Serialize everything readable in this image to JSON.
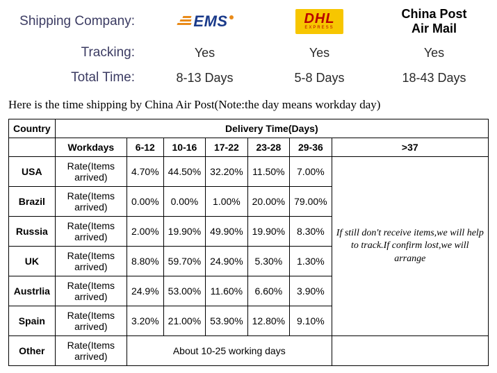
{
  "top": {
    "shipping_company_label": "Shipping Company:",
    "tracking_label": "Tracking:",
    "total_time_label": "Total Time:",
    "companies": {
      "ems": {
        "name": "EMS"
      },
      "dhl": {
        "name": "DHL",
        "sub": "EXPRESS"
      },
      "chinapost": {
        "line1": "China Post",
        "line2": "Air Mail"
      }
    },
    "tracking": {
      "ems": "Yes",
      "dhl": "Yes",
      "chinapost": "Yes"
    },
    "total_time": {
      "ems": "8-13 Days",
      "dhl": "5-8 Days",
      "chinapost": "18-43 Days"
    }
  },
  "note": "Here is the time shipping by China Air Post(Note:the day means workday day)",
  "table": {
    "country_header": "Country",
    "delivery_header": "Delivery Time(Days)",
    "workdays_label": "Workdays",
    "ranges": [
      "6-12",
      "10-16",
      "17-22",
      "23-28",
      "29-36",
      ">37"
    ],
    "row_label": "Rate(Items arrived)",
    "note_over37": "If still don't receive items,we will help to track.If confirm lost,we will arrange",
    "rows": [
      {
        "country": "USA",
        "vals": [
          "4.70%",
          "44.50%",
          "32.20%",
          "11.50%",
          "7.00%"
        ]
      },
      {
        "country": "Brazil",
        "vals": [
          "0.00%",
          "0.00%",
          "1.00%",
          "20.00%",
          "79.00%"
        ]
      },
      {
        "country": "Russia",
        "vals": [
          "2.00%",
          "19.90%",
          "49.90%",
          "19.90%",
          "8.30%"
        ]
      },
      {
        "country": "UK",
        "vals": [
          "8.80%",
          "59.70%",
          "24.90%",
          "5.30%",
          "1.30%"
        ]
      },
      {
        "country": "Austrlia",
        "vals": [
          "24.9%",
          "53.00%",
          "11.60%",
          "6.60%",
          "3.90%"
        ]
      },
      {
        "country": "Spain",
        "vals": [
          "3.20%",
          "21.00%",
          "53.90%",
          "12.80%",
          "9.10%"
        ]
      }
    ],
    "other_country": "Other",
    "other_text": "About 10-25 working days"
  }
}
